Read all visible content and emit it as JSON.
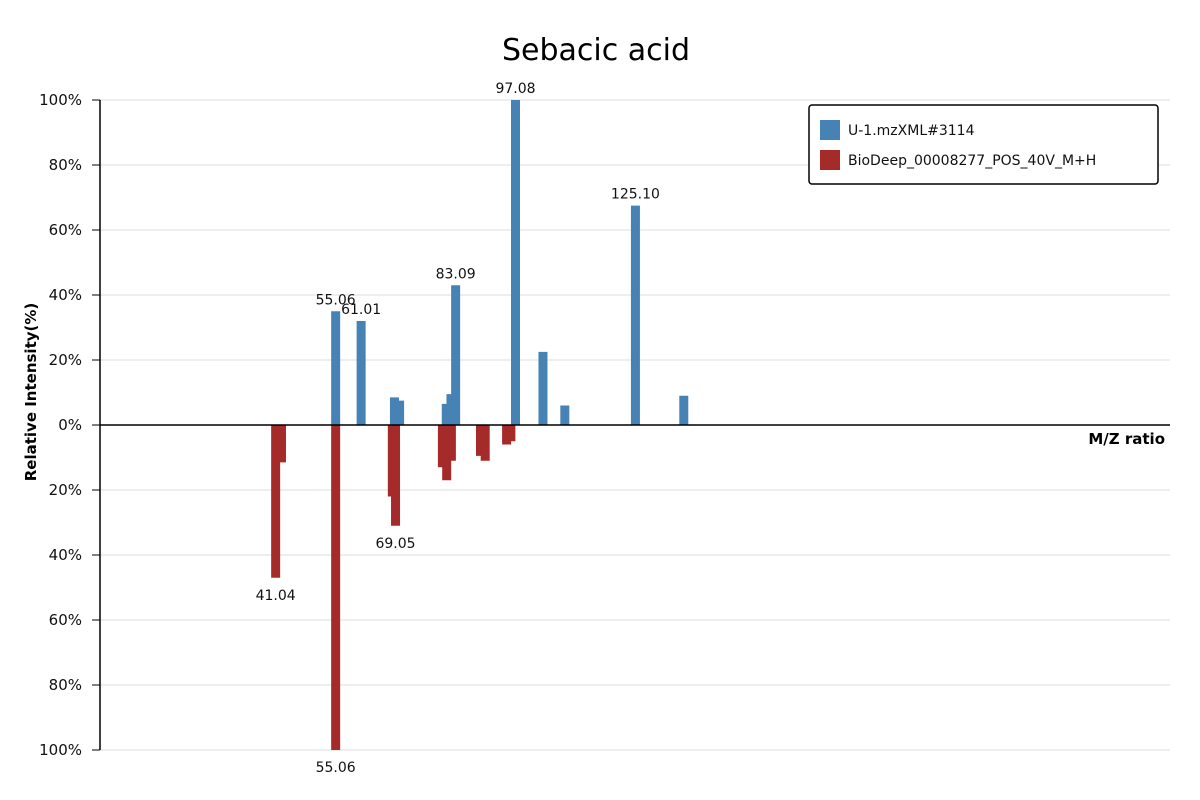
{
  "chart_data": {
    "type": "bar",
    "title": "Sebacic acid",
    "xlabel": "M/Z ratio",
    "ylabel": "Relative Intensity(%)",
    "ylim": [
      -100,
      100
    ],
    "xlim": [
      0,
      250
    ],
    "y_ticks": [
      "100%",
      "80%",
      "60%",
      "40%",
      "20%",
      "0%",
      "20%",
      "40%",
      "60%",
      "80%",
      "100%"
    ],
    "grid": true,
    "legend_position": "top-right",
    "series": [
      {
        "name": "U-1.mzXML#3114",
        "color": "#4682b4",
        "direction": "up",
        "peaks": [
          {
            "mz": 55.06,
            "intensity": 35
          },
          {
            "mz": 61.01,
            "intensity": 32
          },
          {
            "mz": 68.8,
            "intensity": 8.5
          },
          {
            "mz": 70.0,
            "intensity": 7.5
          },
          {
            "mz": 80.9,
            "intensity": 6.5
          },
          {
            "mz": 82.0,
            "intensity": 9.5
          },
          {
            "mz": 83.09,
            "intensity": 43
          },
          {
            "mz": 97.08,
            "intensity": 100
          },
          {
            "mz": 103.5,
            "intensity": 22.5
          },
          {
            "mz": 108.6,
            "intensity": 6
          },
          {
            "mz": 125.1,
            "intensity": 67.5
          },
          {
            "mz": 136.4,
            "intensity": 9
          }
        ],
        "labels": [
          {
            "mz": 55.06,
            "text": "55.06"
          },
          {
            "mz": 61.01,
            "text": "61.01"
          },
          {
            "mz": 83.09,
            "text": "83.09"
          },
          {
            "mz": 97.08,
            "text": "97.08"
          },
          {
            "mz": 125.1,
            "text": "125.10"
          }
        ]
      },
      {
        "name": "BioDeep_00008277_POS_40V_M+H",
        "color": "#a52a2a",
        "direction": "down",
        "peaks": [
          {
            "mz": 41.04,
            "intensity": 47
          },
          {
            "mz": 42.4,
            "intensity": 11.5
          },
          {
            "mz": 55.06,
            "intensity": 100
          },
          {
            "mz": 68.3,
            "intensity": 22
          },
          {
            "mz": 69.05,
            "intensity": 31
          },
          {
            "mz": 80.0,
            "intensity": 13
          },
          {
            "mz": 81.0,
            "intensity": 17
          },
          {
            "mz": 82.1,
            "intensity": 11
          },
          {
            "mz": 88.9,
            "intensity": 9.5
          },
          {
            "mz": 90.0,
            "intensity": 11
          },
          {
            "mz": 95.0,
            "intensity": 6
          },
          {
            "mz": 96.0,
            "intensity": 5
          }
        ],
        "labels": [
          {
            "mz": 41.04,
            "text": "41.04"
          },
          {
            "mz": 55.06,
            "text": "55.06"
          },
          {
            "mz": 69.05,
            "text": "69.05"
          }
        ]
      }
    ]
  }
}
